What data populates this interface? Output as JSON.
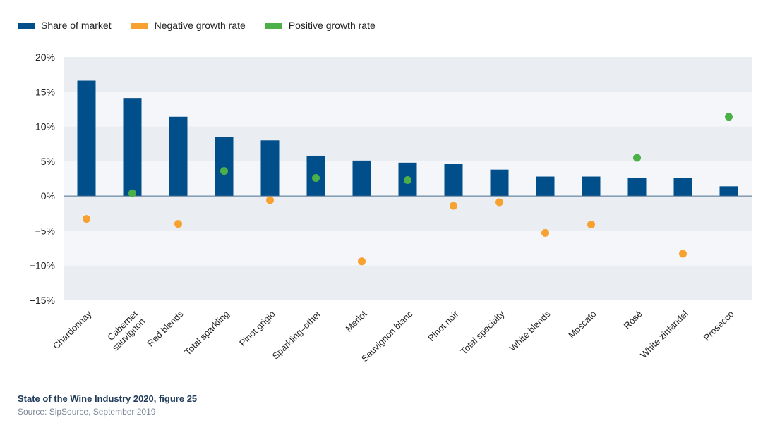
{
  "chart_data": {
    "type": "bar",
    "categories": [
      "Chardonnay",
      "Cabernet sauvignon",
      "Red blends",
      "Total sparkling",
      "Pinot grigio",
      "Sparkling–other",
      "Merlot",
      "Sauvignon blanc",
      "Pinot noir",
      "Total specialty",
      "White blends",
      "Moscato",
      "Rosé",
      "White zinfandel",
      "Prosecco"
    ],
    "category_lines": [
      [
        "Chardonnay"
      ],
      [
        "Cabernet",
        "sauvignon"
      ],
      [
        "Red blends"
      ],
      [
        "Total sparkling"
      ],
      [
        "Pinot grigio"
      ],
      [
        "Sparkling–other"
      ],
      [
        "Merlot"
      ],
      [
        "Sauvignon blanc"
      ],
      [
        "Pinot noir"
      ],
      [
        "Total specialty"
      ],
      [
        "White blends"
      ],
      [
        "Moscato"
      ],
      [
        "Rosé"
      ],
      [
        "White zinfandel"
      ],
      [
        "Prosecco"
      ]
    ],
    "series": [
      {
        "name": "Share of market",
        "kind": "bar",
        "color": "#004e8a",
        "values": [
          16.6,
          14.1,
          11.4,
          8.5,
          8.0,
          5.8,
          5.1,
          4.8,
          4.6,
          3.8,
          2.8,
          2.8,
          2.6,
          2.6,
          1.4
        ]
      },
      {
        "name": "Negative growth rate",
        "kind": "point",
        "color": "#f7a130",
        "values": [
          -3.3,
          null,
          -4.0,
          null,
          -0.6,
          null,
          -9.4,
          null,
          -1.4,
          -0.9,
          -5.3,
          -4.1,
          null,
          -8.3,
          null
        ]
      },
      {
        "name": "Positive growth rate",
        "kind": "point",
        "color": "#4cb048",
        "values": [
          null,
          0.4,
          null,
          3.6,
          null,
          2.6,
          null,
          2.3,
          null,
          null,
          null,
          null,
          5.5,
          null,
          11.4
        ]
      }
    ],
    "ylim": [
      -15,
      20
    ],
    "yticks": [
      -15,
      -10,
      -5,
      0,
      5,
      10,
      15,
      20
    ],
    "ytick_labels": [
      "−15%",
      "−10%",
      "−5%",
      "0%",
      "5%",
      "10%",
      "15%",
      "20%"
    ],
    "legend_position": "top-left",
    "grid": "alternating horizontal bands"
  },
  "caption": {
    "title": "State of the Wine Industry 2020, figure 25",
    "source": "Source: SipSource, September 2019"
  }
}
